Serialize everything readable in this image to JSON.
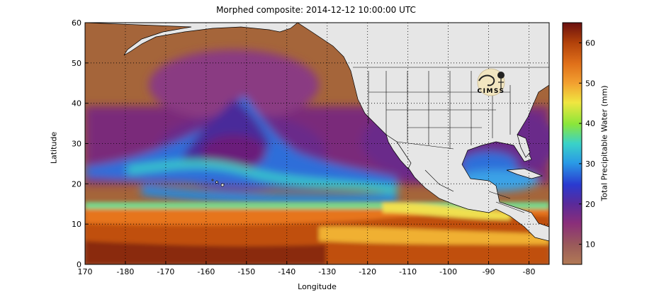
{
  "title": "Morphed composite: 2014-12-12 10:00:00 UTC",
  "xlabel": "Longitude",
  "ylabel": "Latitude",
  "colorbar_label": "Total Precipitable Water (mm)",
  "logo_text": "CIMSS",
  "colors": {
    "land": "#e6e6e6",
    "ocean_dry": "#a5653a",
    "ocean_mid": "#7a2a7a",
    "plume": "#2f6ed9",
    "tropics": "#e6741a",
    "axis": "#000000"
  },
  "chart_data": {
    "type": "heatmap",
    "title": "Morphed composite: 2014-12-12 10:00:00 UTC",
    "xlabel": "Longitude",
    "ylabel": "Latitude",
    "xlim": [
      170,
      -75
    ],
    "ylim": [
      0,
      60
    ],
    "x_ticks": [
      "170",
      "-180",
      "-170",
      "-160",
      "-150",
      "-140",
      "-130",
      "-120",
      "-110",
      "-100",
      "-90",
      "-80"
    ],
    "x_tick_values": [
      170,
      180,
      190,
      200,
      210,
      220,
      230,
      240,
      250,
      260,
      270,
      280
    ],
    "y_ticks": [
      "0",
      "10",
      "20",
      "30",
      "40",
      "50",
      "60"
    ],
    "y_tick_values": [
      0,
      10,
      20,
      30,
      40,
      50,
      60
    ],
    "grid": true,
    "colorbar": {
      "label": "Total Precipitable Water (mm)",
      "range": [
        5,
        65
      ],
      "ticks": [
        "10",
        "20",
        "30",
        "40",
        "50",
        "60"
      ],
      "tick_values": [
        10,
        20,
        30,
        40,
        50,
        60
      ]
    }
  }
}
